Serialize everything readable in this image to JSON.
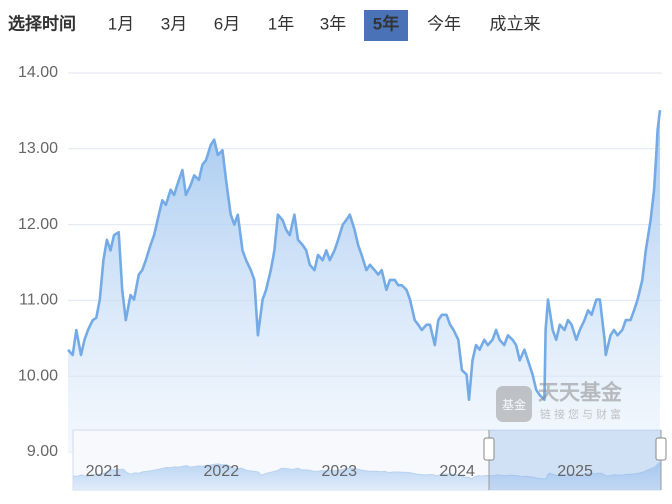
{
  "range_tabs": {
    "label": "选择时间",
    "options": [
      "1月",
      "3月",
      "6月",
      "1年",
      "3年",
      "5年",
      "今年",
      "成立来"
    ],
    "selected": 5
  },
  "watermark": {
    "brand": "天天基金",
    "tagline": "链接您与财富",
    "icon": "基金"
  },
  "chart_data": {
    "type": "area",
    "color": "#74abe6",
    "grid": true,
    "xlim": [
      2020.7,
      2025.72
    ],
    "xticks": [
      2021,
      2022,
      2023,
      2024,
      2025
    ],
    "ylim": [
      9,
      14
    ],
    "yticks": [
      {
        "value": 9,
        "label": "9.00"
      },
      {
        "value": 10,
        "label": "10.00"
      },
      {
        "value": 11,
        "label": "11.00"
      },
      {
        "value": 12,
        "label": "12.00"
      },
      {
        "value": 13,
        "label": "13.00"
      },
      {
        "value": 14,
        "label": "14.00"
      }
    ],
    "x": [
      2020.7,
      2020.74,
      2020.77,
      2020.81,
      2020.84,
      2020.87,
      2020.91,
      2020.94,
      2020.97,
      2021.0,
      2021.03,
      2021.06,
      2021.09,
      2021.13,
      2021.16,
      2021.19,
      2021.23,
      2021.26,
      2021.3,
      2021.33,
      2021.36,
      2021.4,
      2021.43,
      2021.47,
      2021.5,
      2021.53,
      2021.57,
      2021.6,
      2021.64,
      2021.67,
      2021.7,
      2021.74,
      2021.77,
      2021.81,
      2021.84,
      2021.87,
      2021.91,
      2021.94,
      2021.97,
      2022.01,
      2022.04,
      2022.08,
      2022.11,
      2022.14,
      2022.18,
      2022.21,
      2022.25,
      2022.28,
      2022.31,
      2022.35,
      2022.38,
      2022.42,
      2022.45,
      2022.48,
      2022.52,
      2022.55,
      2022.58,
      2022.62,
      2022.65,
      2022.69,
      2022.72,
      2022.75,
      2022.79,
      2022.82,
      2022.86,
      2022.89,
      2022.92,
      2022.96,
      2022.99,
      2023.03,
      2023.06,
      2023.09,
      2023.13,
      2023.16,
      2023.19,
      2023.23,
      2023.26,
      2023.3,
      2023.33,
      2023.36,
      2023.4,
      2023.43,
      2023.47,
      2023.5,
      2023.53,
      2023.57,
      2023.6,
      2023.64,
      2023.67,
      2023.7,
      2023.74,
      2023.77,
      2023.81,
      2023.84,
      2023.87,
      2023.91,
      2023.94,
      2023.97,
      2024.01,
      2024.04,
      2024.08,
      2024.1,
      2024.13,
      2024.16,
      2024.19,
      2024.23,
      2024.26,
      2024.3,
      2024.33,
      2024.36,
      2024.4,
      2024.43,
      2024.47,
      2024.5,
      2024.53,
      2024.57,
      2024.6,
      2024.64,
      2024.67,
      2024.7,
      2024.74,
      2024.75,
      2024.77,
      2024.81,
      2024.84,
      2024.87,
      2024.91,
      2024.94,
      2024.97,
      2025.01,
      2025.04,
      2025.08,
      2025.11,
      2025.14,
      2025.18,
      2025.21,
      2025.25,
      2025.26,
      2025.3,
      2025.33,
      2025.36,
      2025.4,
      2025.43,
      2025.47,
      2025.5,
      2025.53,
      2025.57,
      2025.6,
      2025.64,
      2025.67,
      2025.69,
      2025.7,
      2025.72
    ],
    "values": [
      10.35,
      10.28,
      10.61,
      10.28,
      10.48,
      10.61,
      10.74,
      10.77,
      11.01,
      11.53,
      11.8,
      11.66,
      11.86,
      11.9,
      11.14,
      10.74,
      11.07,
      11.01,
      11.34,
      11.4,
      11.53,
      11.73,
      11.86,
      12.13,
      12.32,
      12.26,
      12.46,
      12.39,
      12.59,
      12.72,
      12.39,
      12.52,
      12.65,
      12.59,
      12.79,
      12.85,
      13.05,
      13.12,
      12.92,
      12.98,
      12.59,
      12.13,
      12.0,
      12.13,
      11.66,
      11.53,
      11.4,
      11.27,
      10.54,
      11.01,
      11.14,
      11.4,
      11.66,
      12.13,
      12.06,
      11.93,
      11.86,
      12.13,
      11.8,
      11.73,
      11.66,
      11.47,
      11.4,
      11.6,
      11.53,
      11.66,
      11.53,
      11.66,
      11.8,
      12.0,
      12.06,
      12.13,
      11.93,
      11.73,
      11.6,
      11.4,
      11.47,
      11.4,
      11.34,
      11.4,
      11.14,
      11.27,
      11.27,
      11.2,
      11.2,
      11.14,
      11.01,
      10.74,
      10.68,
      10.61,
      10.68,
      10.68,
      10.41,
      10.74,
      10.81,
      10.81,
      10.68,
      10.61,
      10.48,
      10.08,
      10.02,
      9.69,
      10.21,
      10.41,
      10.35,
      10.48,
      10.41,
      10.48,
      10.61,
      10.48,
      10.41,
      10.54,
      10.48,
      10.41,
      10.21,
      10.35,
      10.21,
      10.02,
      9.82,
      9.75,
      9.69,
      10.61,
      11.01,
      10.61,
      10.48,
      10.68,
      10.61,
      10.74,
      10.68,
      10.48,
      10.61,
      10.74,
      10.87,
      10.81,
      11.01,
      11.01,
      10.48,
      10.28,
      10.54,
      10.61,
      10.54,
      10.61,
      10.74,
      10.74,
      10.87,
      11.01,
      11.27,
      11.66,
      12.06,
      12.46,
      12.98,
      13.25,
      13.51
    ]
  }
}
